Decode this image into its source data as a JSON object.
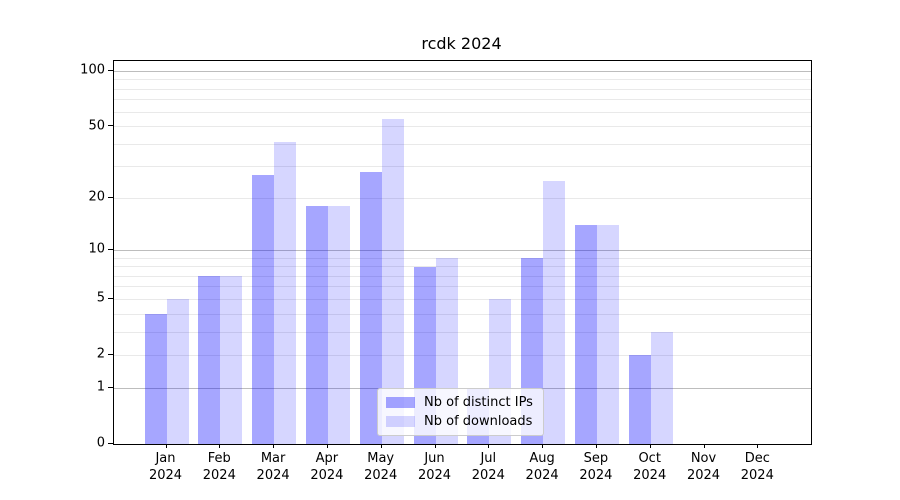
{
  "chart_data": {
    "type": "bar",
    "title": "rcdk 2024",
    "categories": [
      "Jan 2024",
      "Feb 2024",
      "Mar 2024",
      "Apr 2024",
      "May 2024",
      "Jun 2024",
      "Jul 2024",
      "Aug 2024",
      "Sep 2024",
      "Oct 2024",
      "Nov 2024",
      "Dec 2024"
    ],
    "series": [
      {
        "name": "Nb of distinct IPs",
        "color": "rgba(0,0,255,0.35)",
        "values": [
          4,
          7,
          27,
          18,
          28,
          8,
          1,
          9,
          14,
          2,
          0,
          0
        ]
      },
      {
        "name": "Nb of downloads",
        "color": "rgba(0,0,255,0.16)",
        "values": [
          5,
          7,
          41,
          18,
          55,
          9,
          5,
          25,
          14,
          3,
          0,
          0
        ]
      }
    ],
    "xlabel": "",
    "ylabel": "",
    "y_scale": "log1p",
    "ylim": [
      0,
      114
    ],
    "y_tick_labels": [
      0,
      1,
      2,
      5,
      10,
      20,
      50,
      100
    ],
    "y_major_gridlines": [
      1,
      10,
      100
    ],
    "y_minor_gridlines": [
      2,
      3,
      4,
      5,
      6,
      7,
      8,
      9,
      20,
      30,
      40,
      50,
      60,
      70,
      80,
      90
    ],
    "grid": true,
    "legend_position": "lower-center-inside"
  },
  "colors": {
    "major_grid": "#bdbdbd",
    "minor_grid": "#e9e9e9",
    "spine": "#000000",
    "legend_border": "#cccccc",
    "legend_background": "rgba(255,255,255,0.8)"
  }
}
